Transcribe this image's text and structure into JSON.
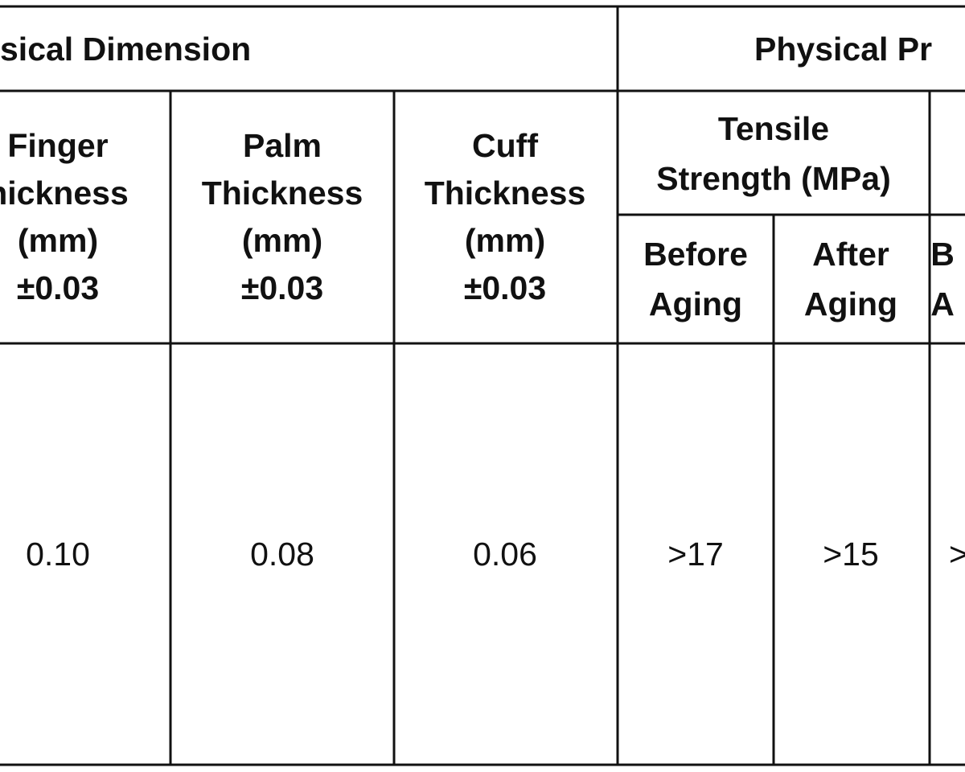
{
  "table": {
    "group_headers": [
      "sical Dimension",
      "Physical Pr"
    ],
    "column_headers": [
      [
        "Finger",
        "hickness",
        "(mm)",
        "±0.03"
      ],
      [
        "Palm",
        "Thickness",
        "(mm)",
        "±0.03"
      ],
      [
        "Cuff",
        "Thickness",
        "(mm)",
        "±0.03"
      ]
    ],
    "sub_group_header": [
      "Tensile",
      "Strength (MPa)"
    ],
    "sub_headers": [
      [
        "Before",
        "Aging"
      ],
      [
        "After",
        "Aging"
      ],
      [
        "B",
        "A"
      ]
    ],
    "rows": [
      [
        "0.10",
        "0.08",
        "0.06",
        ">17",
        ">15",
        ">"
      ]
    ]
  }
}
